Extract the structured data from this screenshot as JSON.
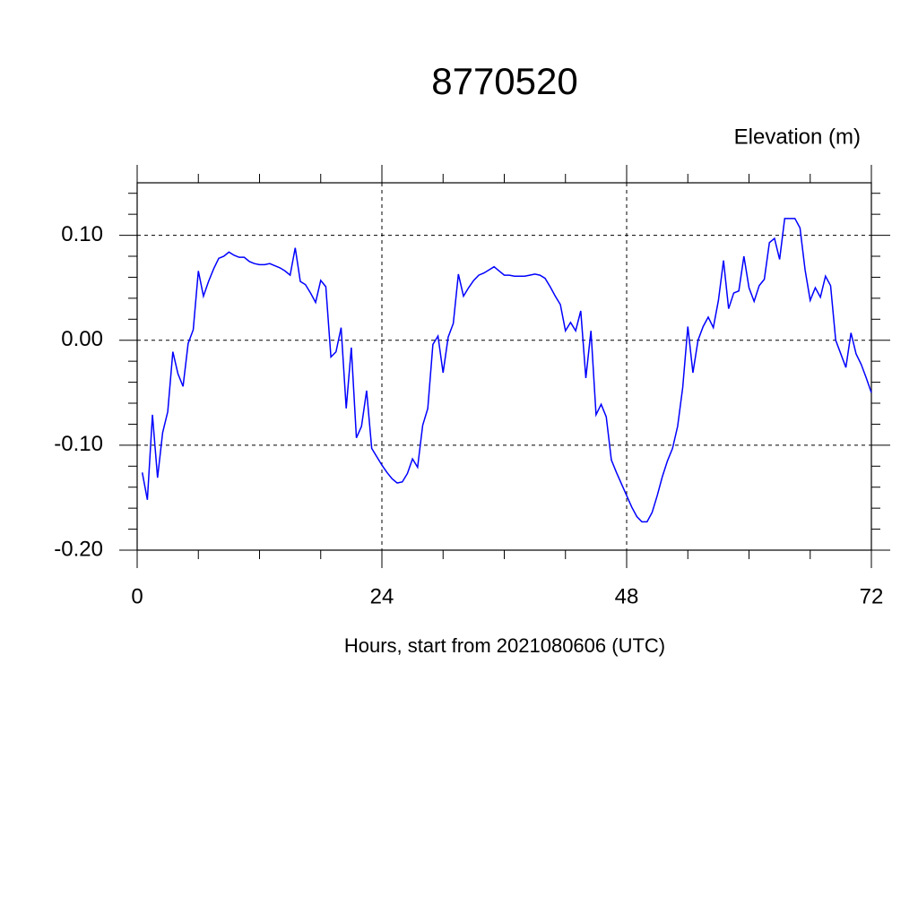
{
  "chart_data": {
    "type": "line",
    "title": "8770520",
    "subtitle": "Elevation (m)",
    "xlabel": "Hours, start from 2021080606 (UTC)",
    "x": [
      0.5,
      1,
      1.5,
      2,
      2.5,
      3,
      3.5,
      4,
      4.5,
      5,
      5.5,
      6,
      6.5,
      7,
      7.5,
      8,
      8.5,
      9,
      9.5,
      10,
      10.5,
      11,
      11.5,
      12,
      12.5,
      13,
      13.5,
      14,
      14.5,
      15,
      15.5,
      16,
      16.5,
      17,
      17.5,
      18,
      18.5,
      19,
      19.5,
      20,
      20.5,
      21,
      21.5,
      22,
      22.5,
      23,
      23.5,
      24,
      24.5,
      25,
      25.5,
      26,
      26.5,
      27,
      27.5,
      28,
      28.5,
      29,
      29.5,
      30,
      30.5,
      31,
      31.5,
      32,
      32.5,
      33,
      33.5,
      34,
      34.5,
      35,
      35.5,
      36,
      36.5,
      37,
      37.5,
      38,
      38.5,
      39,
      39.5,
      40,
      40.5,
      41,
      41.5,
      42,
      42.5,
      43,
      43.5,
      44,
      44.5,
      45,
      45.5,
      46,
      46.5,
      47,
      47.5,
      48,
      48.5,
      49,
      49.5,
      50,
      50.5,
      51,
      51.5,
      52,
      52.5,
      53,
      53.5,
      54,
      54.5,
      55,
      55.5,
      56,
      56.5,
      57,
      57.5,
      58,
      58.5,
      59,
      59.5,
      60,
      60.5,
      61,
      61.5,
      62,
      62.5,
      63,
      63.5,
      64,
      64.5,
      65,
      65.5,
      66,
      66.5,
      67,
      67.5,
      68,
      68.5,
      69,
      69.5,
      70,
      70.5,
      71,
      71.5,
      72
    ],
    "series": [
      {
        "name": "Elevation",
        "color": "#0000ff",
        "values": [
          -0.126,
          -0.152,
          -0.071,
          -0.131,
          -0.088,
          -0.068,
          -0.011,
          -0.032,
          -0.044,
          -0.003,
          0.01,
          0.066,
          0.042,
          0.056,
          0.068,
          0.078,
          0.08,
          0.084,
          0.081,
          0.079,
          0.079,
          0.075,
          0.073,
          0.072,
          0.072,
          0.073,
          0.071,
          0.069,
          0.066,
          0.062,
          0.088,
          0.056,
          0.053,
          0.045,
          0.036,
          0.057,
          0.051,
          -0.016,
          -0.011,
          0.012,
          -0.065,
          -0.007,
          -0.093,
          -0.082,
          -0.048,
          -0.103,
          -0.111,
          -0.119,
          -0.126,
          -0.132,
          -0.136,
          -0.135,
          -0.127,
          -0.113,
          -0.121,
          -0.081,
          -0.065,
          -0.004,
          0.004,
          -0.031,
          0.003,
          0.016,
          0.063,
          0.042,
          0.05,
          0.057,
          0.062,
          0.064,
          0.067,
          0.07,
          0.066,
          0.062,
          0.062,
          0.061,
          0.061,
          0.061,
          0.062,
          0.063,
          0.062,
          0.059,
          0.051,
          0.042,
          0.034,
          0.009,
          0.017,
          0.009,
          0.028,
          -0.036,
          0.009,
          -0.071,
          -0.061,
          -0.073,
          -0.114,
          -0.126,
          -0.137,
          -0.148,
          -0.159,
          -0.168,
          -0.173,
          -0.173,
          -0.164,
          -0.148,
          -0.13,
          -0.115,
          -0.103,
          -0.082,
          -0.045,
          0.013,
          -0.031,
          0.0,
          0.013,
          0.022,
          0.012,
          0.038,
          0.076,
          0.03,
          0.045,
          0.047,
          0.08,
          0.05,
          0.037,
          0.052,
          0.058,
          0.093,
          0.097,
          0.077,
          0.116,
          0.116,
          0.116,
          0.107,
          0.067,
          0.038,
          0.05,
          0.041,
          0.061,
          0.052,
          0.0,
          -0.013,
          -0.026,
          0.007,
          -0.013,
          -0.023,
          -0.036,
          -0.05
        ]
      }
    ],
    "xlim": [
      0,
      72
    ],
    "xticks": [
      0,
      24,
      48,
      72
    ],
    "xminorticks": [
      6,
      12,
      18,
      30,
      36,
      42,
      54,
      60,
      66
    ],
    "ylim": [
      -0.2,
      0.15
    ],
    "yticks": [
      {
        "value": 0.1,
        "label": "0.10"
      },
      {
        "value": 0,
        "label": "0.00"
      },
      {
        "value": -0.1,
        "label": "-0.10"
      },
      {
        "value": -0.2,
        "label": "-0.20"
      }
    ],
    "yminorticks": [
      0.14,
      0.12,
      0.08,
      0.06,
      0.04,
      0.02,
      -0.02,
      -0.04,
      -0.06,
      -0.08,
      -0.12,
      -0.14,
      -0.16,
      -0.18
    ],
    "grid": true
  }
}
